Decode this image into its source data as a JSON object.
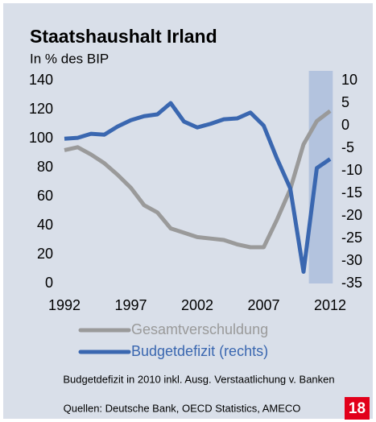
{
  "chart_data": {
    "type": "line",
    "title": "Staatshaushalt Irland",
    "subtitle": "In % des BIP",
    "x": [
      1992,
      1993,
      1994,
      1995,
      1996,
      1997,
      1998,
      1999,
      2000,
      2001,
      2002,
      2003,
      2004,
      2005,
      2006,
      2007,
      2008,
      2009,
      2010,
      2011,
      2012
    ],
    "series": [
      {
        "name": "Gesamtverschuldung",
        "color": "#9a9a9a",
        "axis": "y",
        "values": [
          92,
          94,
          89,
          83,
          75,
          66,
          54,
          49,
          38,
          35,
          32,
          31,
          30,
          27,
          25,
          25,
          44,
          65,
          96,
          112,
          119
        ]
      },
      {
        "name": "Budgetdefizit (rechts)",
        "color": "#3a67b0",
        "axis": "y2",
        "values": [
          -2.9,
          -2.7,
          -1.8,
          -2.0,
          -0.2,
          1.2,
          2.1,
          2.5,
          5,
          0.9,
          -0.4,
          0.4,
          1.4,
          1.6,
          2.9,
          0,
          -7.3,
          -13.9,
          -32.4,
          -9.4,
          -7.4
        ]
      }
    ],
    "xlim": [
      1992,
      2012
    ],
    "xticks": [
      1992,
      1997,
      2002,
      2007,
      2012
    ],
    "ylim": [
      0,
      140
    ],
    "yticks": [
      0,
      20,
      40,
      60,
      80,
      100,
      120,
      140
    ],
    "y2lim": [
      -35,
      10
    ],
    "y2ticks": [
      -35,
      -30,
      -25,
      -20,
      -15,
      -10,
      -5,
      0,
      5,
      10
    ],
    "highlight_xrange": [
      2010.4,
      2012.2
    ],
    "highlight_color": "#b3c3de",
    "note": "Budgetdefizit in 2010 inkl. Ausg. Verstaatlichung v. Banken",
    "source": "Quellen: Deutsche Bank, OECD Statistics, AMECO",
    "page_number": "18"
  }
}
